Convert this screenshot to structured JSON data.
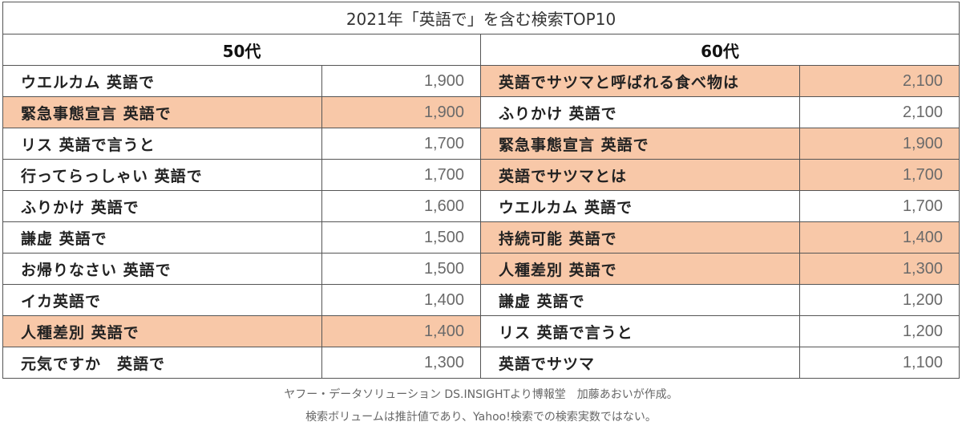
{
  "title": "2021年「英語で」を含む検索TOP10",
  "columns": [
    {
      "heading": "50代",
      "rows": [
        {
          "term": "ウエルカム 英語で",
          "count": "1,900",
          "highlight": false
        },
        {
          "term": "緊急事態宣言 英語で",
          "count": "1,900",
          "highlight": true
        },
        {
          "term": "リス 英語で言うと",
          "count": "1,700",
          "highlight": false
        },
        {
          "term": "行ってらっしゃい 英語で",
          "count": "1,700",
          "highlight": false
        },
        {
          "term": "ふりかけ 英語で",
          "count": "1,600",
          "highlight": false
        },
        {
          "term": "謙虚 英語で",
          "count": "1,500",
          "highlight": false
        },
        {
          "term": "お帰りなさい 英語で",
          "count": "1,500",
          "highlight": false
        },
        {
          "term": "イカ英語で",
          "count": "1,400",
          "highlight": false
        },
        {
          "term": "人種差別 英語で",
          "count": "1,400",
          "highlight": true
        },
        {
          "term": "元気ですか　英語で",
          "count": "1,300",
          "highlight": false
        }
      ]
    },
    {
      "heading": "60代",
      "rows": [
        {
          "term": "英語でサツマと呼ばれる食べ物は",
          "count": "2,100",
          "highlight": true
        },
        {
          "term": "ふりかけ 英語で",
          "count": "2,100",
          "highlight": false
        },
        {
          "term": "緊急事態宣言 英語で",
          "count": "1,900",
          "highlight": true
        },
        {
          "term": "英語でサツマとは",
          "count": "1,700",
          "highlight": true
        },
        {
          "term": "ウエルカム 英語で",
          "count": "1,700",
          "highlight": false
        },
        {
          "term": "持続可能 英語で",
          "count": "1,400",
          "highlight": true
        },
        {
          "term": "人種差別 英語で",
          "count": "1,300",
          "highlight": true
        },
        {
          "term": "謙虚 英語で",
          "count": "1,200",
          "highlight": false
        },
        {
          "term": "リス 英語で言うと",
          "count": "1,200",
          "highlight": false
        },
        {
          "term": "英語でサツマ",
          "count": "1,100",
          "highlight": false
        }
      ]
    }
  ],
  "notes": [
    "ヤフー・データソリューション DS.INSIGHTより博報堂　加藤あおいが作成。",
    "検索ボリュームは推計値であり、Yahoo!検索での検索実数ではない。"
  ],
  "colors": {
    "highlight": "#f8c8a8",
    "border": "#555555"
  }
}
